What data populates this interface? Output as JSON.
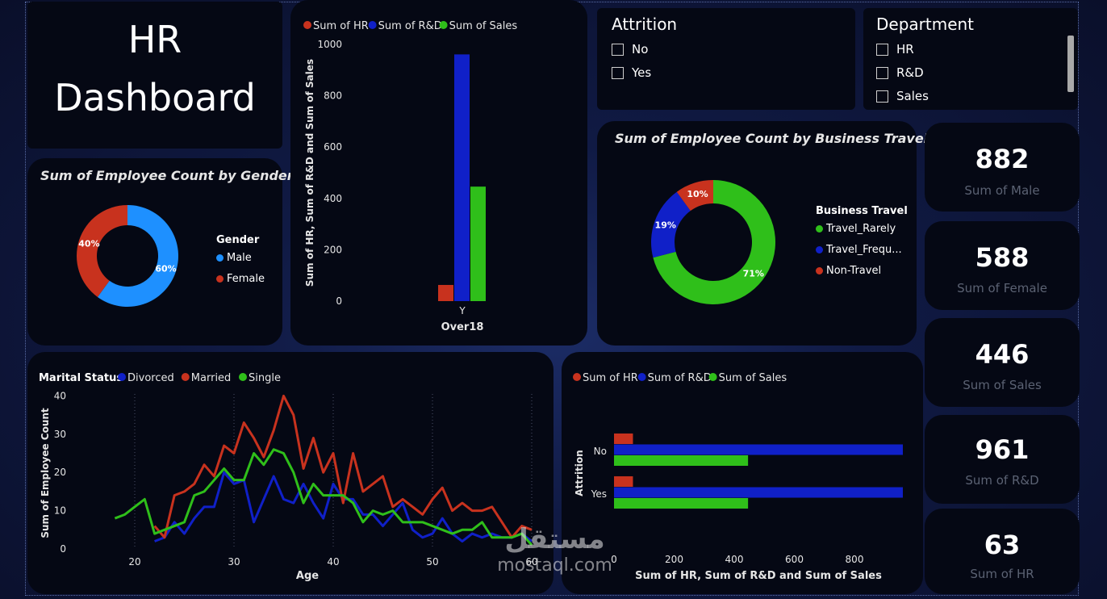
{
  "title": {
    "line1": "HR",
    "line2": "Dashboard"
  },
  "gender_chart": {
    "title": "Sum of Employee Count by Gender",
    "legend_title": "Gender",
    "legend": [
      {
        "label": "Male",
        "color": "#1e90ff"
      },
      {
        "label": "Female",
        "color": "#c8321e"
      }
    ],
    "slices": [
      {
        "label": "Male",
        "pct": 60,
        "text": "60%",
        "color": "#1e90ff"
      },
      {
        "label": "Female",
        "pct": 40,
        "text": "40%",
        "color": "#c8321e"
      }
    ]
  },
  "over18_chart": {
    "legend": [
      {
        "label": "Sum of HR",
        "color": "#c8321e"
      },
      {
        "label": "Sum of R&D",
        "color": "#1020c8"
      },
      {
        "label": "Sum of Sales",
        "color": "#2fbf1a"
      }
    ],
    "ylabel": "Sum of HR, Sum of R&D and Sum of Sales",
    "xlabel": "Over18",
    "yticks": [
      "0",
      "200",
      "400",
      "600",
      "800",
      "1000"
    ],
    "category": "Y"
  },
  "attrition_slicer": {
    "title": "Attrition",
    "items": [
      "No",
      "Yes"
    ]
  },
  "department_slicer": {
    "title": "Department",
    "items": [
      "HR",
      "R&D",
      "Sales"
    ]
  },
  "travel_chart": {
    "title": "Sum of Employee Count by Business Travel",
    "legend_title": "Business Travel",
    "legend": [
      {
        "label": "Travel_Rarely",
        "color": "#2fbf1a"
      },
      {
        "label": "Travel_Frequ...",
        "color": "#1020c8"
      },
      {
        "label": "Non-Travel",
        "color": "#c8321e"
      }
    ],
    "slices": [
      {
        "label": "Travel_Rarely",
        "pct": 71,
        "text": "71%",
        "color": "#2fbf1a"
      },
      {
        "label": "Travel_Frequently",
        "pct": 19,
        "text": "19%",
        "color": "#1020c8"
      },
      {
        "label": "Non-Travel",
        "pct": 10,
        "text": "10%",
        "color": "#c8321e"
      }
    ]
  },
  "kpis": [
    {
      "value": "882",
      "label": "Sum of Male"
    },
    {
      "value": "588",
      "label": "Sum of Female"
    },
    {
      "value": "446",
      "label": "Sum of Sales"
    },
    {
      "value": "961",
      "label": "Sum of R&D"
    },
    {
      "value": "63",
      "label": "Sum of HR"
    }
  ],
  "age_chart": {
    "legend_title": "Marital Status",
    "legend": [
      {
        "label": "Divorced",
        "color": "#1020c8"
      },
      {
        "label": "Married",
        "color": "#c8321e"
      },
      {
        "label": "Single",
        "color": "#2fbf1a"
      }
    ],
    "ylabel": "Sum of Employee Count",
    "xlabel": "Age",
    "yticks": [
      "0",
      "10",
      "20",
      "30",
      "40"
    ],
    "xticks": [
      "20",
      "30",
      "40",
      "50",
      "60"
    ]
  },
  "attr_chart": {
    "legend": [
      {
        "label": "Sum of HR",
        "color": "#c8321e"
      },
      {
        "label": "Sum of R&D",
        "color": "#1020c8"
      },
      {
        "label": "Sum of Sales",
        "color": "#2fbf1a"
      }
    ],
    "ylabel": "Attrition",
    "xlabel": "Sum of HR, Sum of R&D and Sum of Sales",
    "xticks": [
      "0",
      "200",
      "400",
      "600",
      "800"
    ],
    "categories": [
      "No",
      "Yes"
    ]
  },
  "watermark": {
    "arabic": "مستقل",
    "latin": "mostaql.com"
  },
  "chart_data": [
    {
      "type": "pie",
      "title": "Sum of Employee Count by Gender",
      "categories": [
        "Male",
        "Female"
      ],
      "values": [
        60,
        40
      ]
    },
    {
      "type": "bar",
      "categories": [
        "Y"
      ],
      "series": [
        {
          "name": "Sum of HR",
          "values": [
            63
          ]
        },
        {
          "name": "Sum of R&D",
          "values": [
            961
          ]
        },
        {
          "name": "Sum of Sales",
          "values": [
            446
          ]
        }
      ],
      "xlabel": "Over18",
      "ylabel": "Sum of HR, Sum of R&D and Sum of Sales",
      "ylim": [
        0,
        1000
      ]
    },
    {
      "type": "pie",
      "title": "Sum of Employee Count by Business Travel",
      "categories": [
        "Travel_Rarely",
        "Travel_Frequently",
        "Non-Travel"
      ],
      "values": [
        71,
        19,
        10
      ]
    },
    {
      "type": "line",
      "xlabel": "Age",
      "ylabel": "Sum of Employee Count",
      "ylim": [
        0,
        40
      ],
      "xlim": [
        18,
        60
      ],
      "series": [
        {
          "name": "Divorced",
          "x": [
            22,
            23,
            24,
            25,
            26,
            27,
            28,
            29,
            30,
            31,
            32,
            33,
            34,
            35,
            36,
            37,
            38,
            39,
            40,
            41,
            42,
            43,
            44,
            45,
            46,
            47,
            48,
            49,
            50,
            51,
            52,
            53,
            54,
            55,
            56,
            57,
            58,
            59,
            60
          ],
          "values": [
            2,
            3,
            7,
            4,
            8,
            11,
            11,
            20,
            17,
            18,
            7,
            13,
            19,
            13,
            12,
            17,
            12,
            8,
            17,
            13,
            13,
            9,
            9,
            6,
            9,
            12,
            5,
            3,
            4,
            8,
            4,
            2,
            4,
            3,
            4,
            3,
            3,
            4,
            2
          ]
        },
        {
          "name": "Married",
          "x": [
            22,
            23,
            24,
            25,
            26,
            27,
            28,
            29,
            30,
            31,
            32,
            33,
            34,
            35,
            36,
            37,
            38,
            39,
            40,
            41,
            42,
            43,
            44,
            45,
            46,
            47,
            48,
            49,
            50,
            51,
            52,
            53,
            54,
            55,
            56,
            57,
            58,
            59,
            60
          ],
          "values": [
            6,
            3,
            14,
            15,
            17,
            22,
            19,
            27,
            25,
            33,
            29,
            24,
            31,
            40,
            35,
            21,
            29,
            20,
            25,
            12,
            25,
            15,
            17,
            19,
            11,
            13,
            11,
            9,
            13,
            16,
            10,
            12,
            10,
            10,
            11,
            7,
            3,
            6,
            5
          ]
        },
        {
          "name": "Single",
          "x": [
            18,
            19,
            20,
            21,
            22,
            23,
            24,
            25,
            26,
            27,
            28,
            29,
            30,
            31,
            32,
            33,
            34,
            35,
            36,
            37,
            38,
            39,
            40,
            41,
            42,
            43,
            44,
            45,
            46,
            47,
            48,
            49,
            50,
            51,
            52,
            53,
            54,
            55,
            56,
            57,
            58,
            59,
            60
          ],
          "values": [
            8,
            9,
            11,
            13,
            4,
            5,
            6,
            7,
            14,
            15,
            18,
            21,
            18,
            18,
            25,
            22,
            26,
            25,
            20,
            12,
            17,
            14,
            14,
            14,
            12,
            7,
            10,
            9,
            10,
            7,
            7,
            7,
            6,
            5,
            4,
            5,
            5,
            7,
            3,
            3,
            3,
            4,
            1
          ]
        }
      ]
    },
    {
      "type": "bar",
      "orientation": "horizontal",
      "categories": [
        "No",
        "Yes"
      ],
      "series": [
        {
          "name": "Sum of HR",
          "values": [
            63,
            63
          ]
        },
        {
          "name": "Sum of R&D",
          "values": [
            961,
            961
          ]
        },
        {
          "name": "Sum of Sales",
          "values": [
            446,
            446
          ]
        }
      ],
      "xlabel": "Sum of HR, Sum of R&D and Sum of Sales",
      "ylabel": "Attrition",
      "xlim": [
        0,
        961
      ]
    }
  ]
}
